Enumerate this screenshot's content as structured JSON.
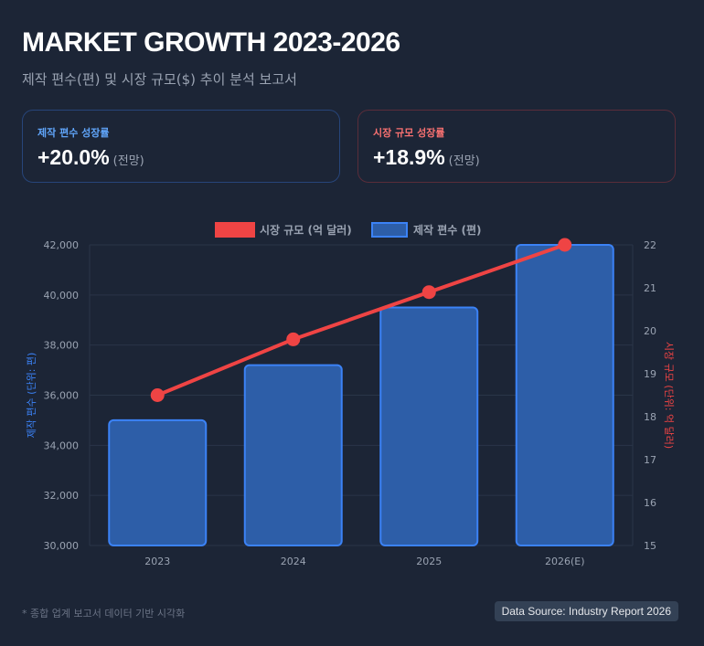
{
  "header": {
    "title": "MARKET GROWTH 2023-2026",
    "subtitle": "제작 편수(편) 및 시장 규모($) 추이 분석 보고서"
  },
  "cards": [
    {
      "label": "제작 편수 성장률",
      "value": "+20.0%",
      "note": "(전망)",
      "color": "#60a5fa"
    },
    {
      "label": "시장 규모 성장률",
      "value": "+18.9%",
      "note": "(전망)",
      "color": "#f87171"
    }
  ],
  "chart_data": {
    "type": "bar+line",
    "categories": [
      "2023",
      "2024",
      "2025",
      "2026(E)"
    ],
    "series": [
      {
        "name": "제작 편수 (편)",
        "type": "bar",
        "axis": "left",
        "values": [
          35000,
          37200,
          39500,
          42000
        ],
        "color": "#3b82f6"
      },
      {
        "name": "시장 규모 (억 달러)",
        "type": "line",
        "axis": "right",
        "values": [
          18.5,
          19.8,
          20.9,
          22.0
        ],
        "color": "#ef4444"
      }
    ],
    "ylabel_left": "제작 편수 (단위: 편)",
    "ylabel_right": "시장 규모 (단위: 억 달러)",
    "ylim_left": [
      30000,
      42000
    ],
    "yticks_left": [
      "30,000",
      "32,000",
      "34,000",
      "36,000",
      "38,000",
      "40,000",
      "42,000"
    ],
    "ylim_right": [
      15,
      22
    ],
    "yticks_right": [
      "15",
      "16",
      "17",
      "18",
      "19",
      "20",
      "21",
      "22"
    ],
    "legend_position": "top",
    "grid": true
  },
  "footer": {
    "note": "* 종합 업계 보고서 데이터 기반 시각화",
    "source": "Data Source: Industry Report 2026"
  }
}
